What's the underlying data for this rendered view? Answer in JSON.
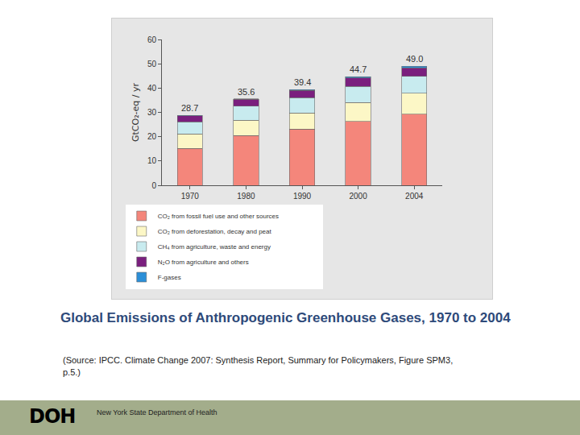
{
  "chart_data": {
    "type": "bar",
    "stacked": true,
    "grid": false,
    "legend": "bottom",
    "y_label": "GtCO₂-eq / yr",
    "categories": [
      "1970",
      "1980",
      "1990",
      "2000",
      "2004"
    ],
    "series": [
      {
        "name": "CO₂ from fossil fuel use and other sources",
        "color": "#f4867b",
        "values": [
          15.1,
          20.4,
          23.2,
          26.2,
          29.3
        ]
      },
      {
        "name": "CO₂ from deforestation, decay and peat",
        "color": "#fcf7c6",
        "values": [
          6.0,
          6.3,
          6.6,
          7.9,
          8.6
        ]
      },
      {
        "name": "CH₄ from agriculture, waste and energy",
        "color": "#c8ebef",
        "values": [
          5.0,
          5.9,
          6.3,
          6.6,
          6.9
        ]
      },
      {
        "name": "N₂O from agriculture and others",
        "color": "#7a1f7e",
        "values": [
          2.5,
          2.8,
          3.0,
          3.5,
          3.5
        ]
      },
      {
        "name": "F-gases",
        "color": "#2b8fd8",
        "values": [
          0.1,
          0.2,
          0.3,
          0.5,
          0.7
        ]
      }
    ],
    "totals": [
      28.7,
      35.6,
      39.4,
      44.7,
      49.0
    ],
    "total_labels": [
      "28.7",
      "35.6",
      "39.4",
      "44.7",
      "49.0"
    ],
    "ylim": [
      0,
      60
    ],
    "yticks": [
      0,
      10,
      20,
      30,
      40,
      50,
      60
    ]
  },
  "slide": {
    "caption": "Global Emissions of Anthropogenic Greenhouse Gases, 1970 to 2004",
    "source": "(Source: IPCC. Climate Change 2007: Synthesis Report, Summary for Policymakers, Figure SPM3, p.5.)",
    "logo": "DOH",
    "organization": "New York State Department of Health"
  }
}
